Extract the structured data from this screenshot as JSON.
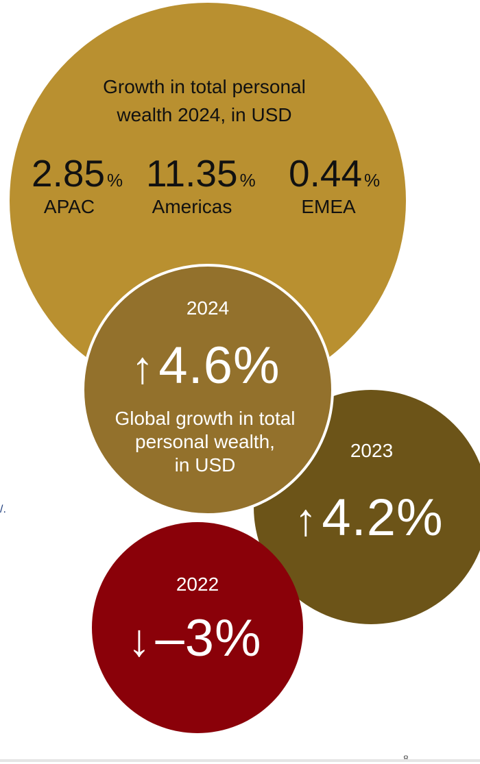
{
  "regional": {
    "title_line1": "Growth in total personal",
    "title_line2": "wealth 2024, in USD",
    "stats": [
      {
        "value": "2.85",
        "unit": "%",
        "label": "APAC"
      },
      {
        "value": "11.35",
        "unit": "%",
        "label": "Americas"
      },
      {
        "value": "0.44",
        "unit": "%",
        "label": "EMEA"
      }
    ]
  },
  "global_2024": {
    "year": "2024",
    "arrow": "↑",
    "value": "4.6%",
    "description_line1": "Global growth in total",
    "description_line2": "personal wealth,",
    "description_line3": "in USD"
  },
  "global_2023": {
    "year": "2023",
    "arrow": "↑",
    "value": "4.2%"
  },
  "global_2022": {
    "year": "2022",
    "arrow": "↓",
    "value": "–3%"
  },
  "fragments": {
    "side_mark": "/.",
    "page_number": "8"
  },
  "colors": {
    "regional_circle": "#b99030",
    "circle_2024": "#93712c",
    "circle_2023": "#6c5418",
    "circle_2022": "#8a0109"
  }
}
